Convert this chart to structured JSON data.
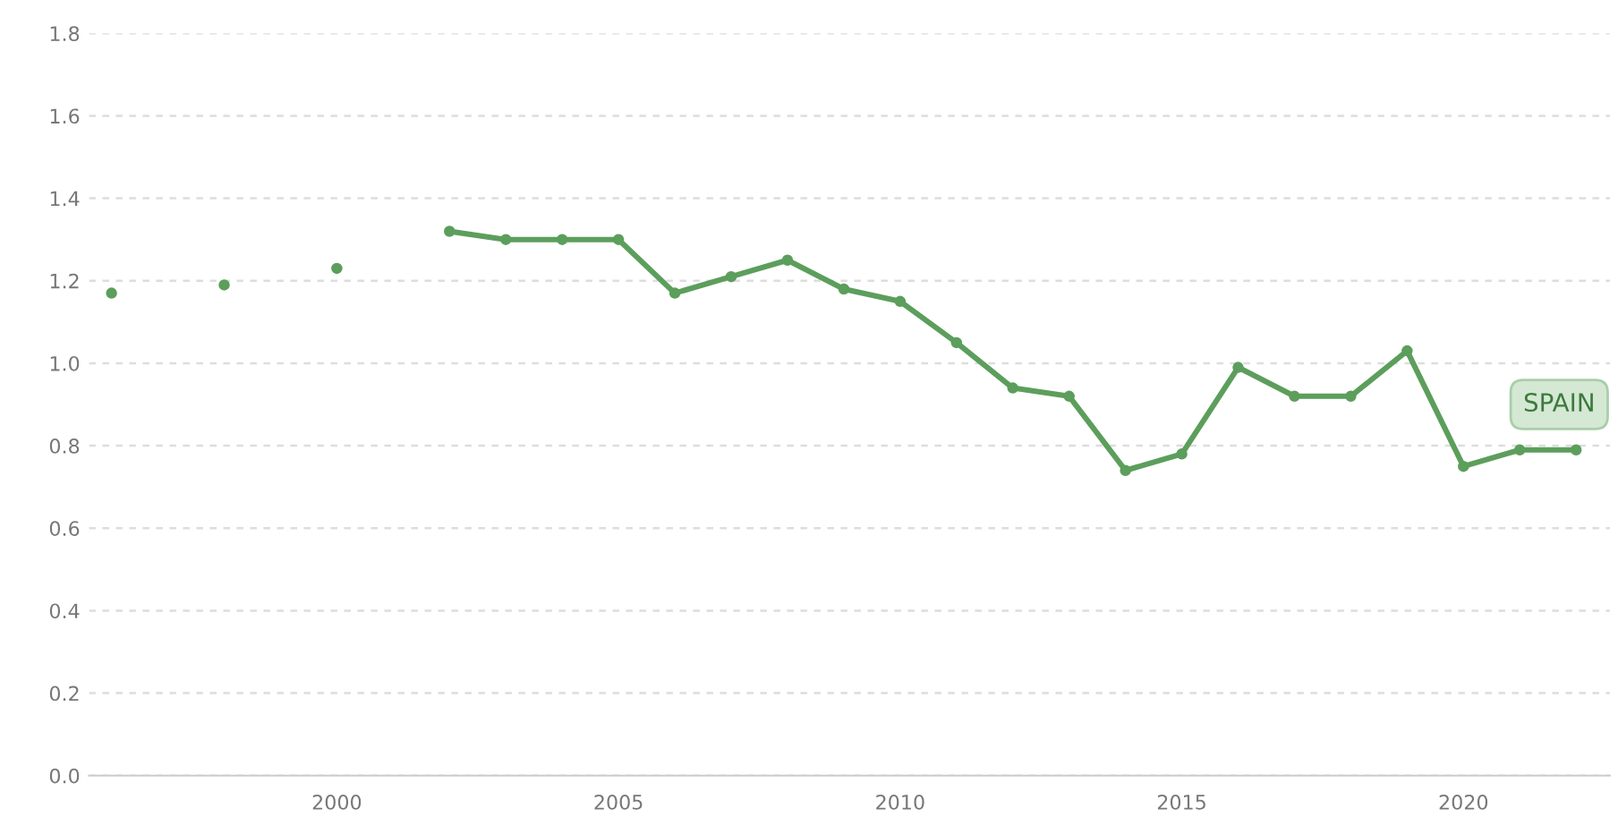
{
  "chart_data": {
    "type": "line",
    "x": [
      1996,
      1997,
      1998,
      1999,
      2000,
      2001,
      2002,
      2003,
      2004,
      2005,
      2006,
      2007,
      2008,
      2009,
      2010,
      2011,
      2012,
      2013,
      2014,
      2015,
      2016,
      2017,
      2018,
      2019,
      2020,
      2021,
      2022
    ],
    "series": [
      {
        "name": "SPAIN",
        "color": "#5c9e5c",
        "values": [
          1.17,
          null,
          1.19,
          null,
          1.23,
          null,
          1.32,
          1.3,
          1.3,
          1.3,
          1.17,
          1.21,
          1.25,
          1.18,
          1.15,
          1.05,
          0.94,
          0.92,
          0.74,
          0.78,
          0.99,
          0.92,
          0.92,
          1.03,
          0.75,
          0.79,
          0.79
        ]
      }
    ],
    "xlim": [
      1995.6,
      2022.6
    ],
    "xticks": [
      2000,
      2005,
      2010,
      2015,
      2020
    ],
    "ylim": [
      0,
      1.8
    ],
    "yticks": [
      {
        "value": 0,
        "label": "0.0"
      },
      {
        "value": 0.2,
        "label": "0.2"
      },
      {
        "value": 0.4,
        "label": "0.4"
      },
      {
        "value": 0.6,
        "label": "0.6"
      },
      {
        "value": 0.8,
        "label": "0.8"
      },
      {
        "value": 1,
        "label": "1.0"
      },
      {
        "value": 1.2,
        "label": "1.2"
      },
      {
        "value": 1.4,
        "label": "1.4"
      },
      {
        "value": 1.6,
        "label": "1.6"
      },
      {
        "value": 1.8,
        "label": "1.8"
      }
    ],
    "grid": "y",
    "legend": false,
    "marker": "circle",
    "line_style": "solid"
  }
}
